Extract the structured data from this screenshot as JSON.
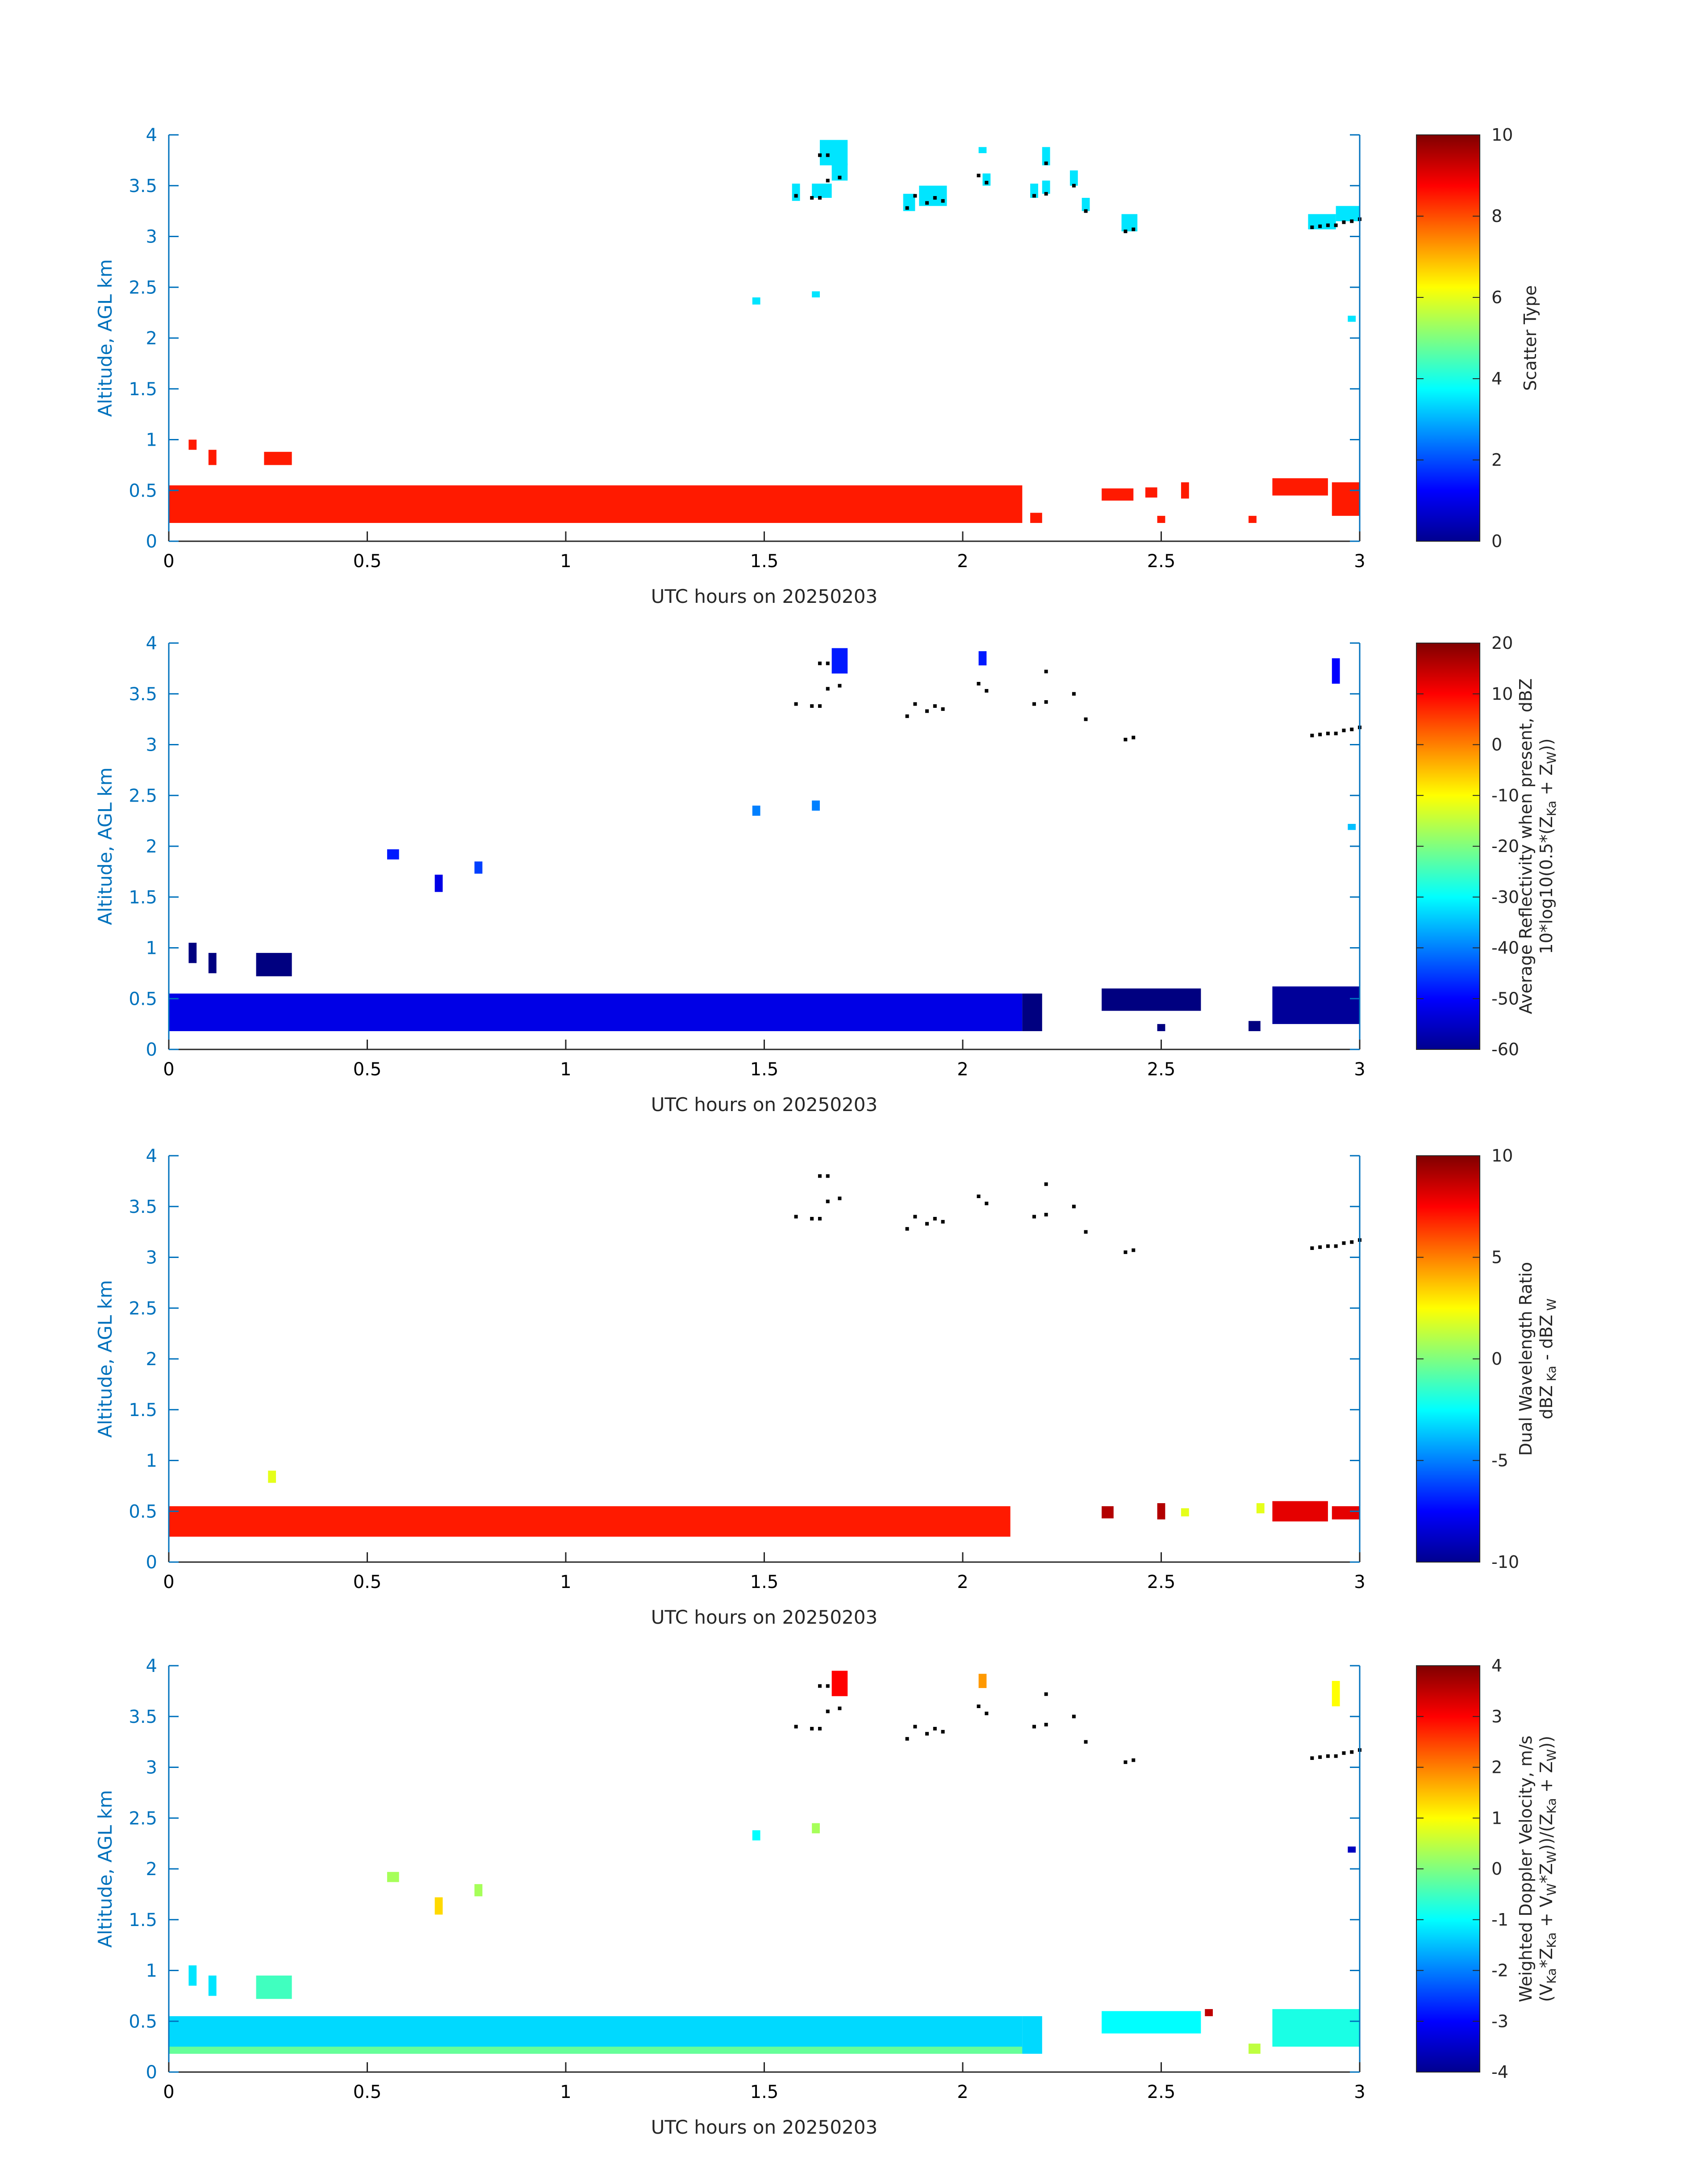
{
  "chart_data": [
    {
      "type": "heatmap",
      "xlabel": "UTC hours on 20250203",
      "ylabel": "Altitude, AGL km",
      "xlim": [
        0,
        3
      ],
      "ylim": [
        0,
        4
      ],
      "x_ticks": [
        "0",
        "0.5",
        "1",
        "1.5",
        "2",
        "2.5",
        "3"
      ],
      "y_ticks": [
        "0",
        "0.5",
        "1",
        "1.5",
        "2",
        "2.5",
        "3",
        "3.5",
        "4"
      ],
      "colorbar": {
        "label": "Scatter Type",
        "min": 0,
        "max": 10,
        "ticks": [
          "0",
          "2",
          "4",
          "6",
          "8",
          "10"
        ]
      },
      "blocks": [
        {
          "x0": 0.0,
          "x1": 2.15,
          "y0": 0.18,
          "y1": 0.55,
          "value": 8.5
        },
        {
          "x0": 0.05,
          "x1": 0.07,
          "y0": 0.9,
          "y1": 1.0,
          "value": 8.5
        },
        {
          "x0": 0.1,
          "x1": 0.12,
          "y0": 0.75,
          "y1": 0.9,
          "value": 8.5
        },
        {
          "x0": 0.24,
          "x1": 0.31,
          "y0": 0.75,
          "y1": 0.88,
          "value": 8.5
        },
        {
          "x0": 2.17,
          "x1": 2.2,
          "y0": 0.18,
          "y1": 0.28,
          "value": 8.5
        },
        {
          "x0": 2.35,
          "x1": 2.43,
          "y0": 0.4,
          "y1": 0.52,
          "value": 8.5
        },
        {
          "x0": 2.46,
          "x1": 2.49,
          "y0": 0.43,
          "y1": 0.53,
          "value": 8.5
        },
        {
          "x0": 2.55,
          "x1": 2.57,
          "y0": 0.42,
          "y1": 0.58,
          "value": 8.5
        },
        {
          "x0": 2.49,
          "x1": 2.51,
          "y0": 0.18,
          "y1": 0.25,
          "value": 8.5
        },
        {
          "x0": 2.72,
          "x1": 2.74,
          "y0": 0.18,
          "y1": 0.25,
          "value": 8.5
        },
        {
          "x0": 2.78,
          "x1": 2.92,
          "y0": 0.45,
          "y1": 0.62,
          "value": 8.5
        },
        {
          "x0": 2.93,
          "x1": 3.0,
          "y0": 0.25,
          "y1": 0.58,
          "value": 8.5
        },
        {
          "x0": 1.47,
          "x1": 1.49,
          "y0": 2.33,
          "y1": 2.4,
          "value": 3.5
        },
        {
          "x0": 1.62,
          "x1": 1.64,
          "y0": 2.4,
          "y1": 2.46,
          "value": 3.5
        },
        {
          "x0": 1.57,
          "x1": 1.59,
          "y0": 3.35,
          "y1": 3.52,
          "value": 3.5
        },
        {
          "x0": 1.62,
          "x1": 1.67,
          "y0": 3.38,
          "y1": 3.52,
          "value": 3.5
        },
        {
          "x0": 1.64,
          "x1": 1.71,
          "y0": 3.7,
          "y1": 3.95,
          "value": 3.5
        },
        {
          "x0": 1.67,
          "x1": 1.71,
          "y0": 3.55,
          "y1": 3.72,
          "value": 3.5
        },
        {
          "x0": 1.85,
          "x1": 1.88,
          "y0": 3.25,
          "y1": 3.42,
          "value": 3.5
        },
        {
          "x0": 1.89,
          "x1": 1.96,
          "y0": 3.3,
          "y1": 3.5,
          "value": 3.5
        },
        {
          "x0": 2.04,
          "x1": 2.06,
          "y0": 3.82,
          "y1": 3.88,
          "value": 3.5
        },
        {
          "x0": 2.05,
          "x1": 2.07,
          "y0": 3.5,
          "y1": 3.62,
          "value": 3.5
        },
        {
          "x0": 2.17,
          "x1": 2.19,
          "y0": 3.38,
          "y1": 3.52,
          "value": 3.5
        },
        {
          "x0": 2.2,
          "x1": 2.22,
          "y0": 3.7,
          "y1": 3.88,
          "value": 3.5
        },
        {
          "x0": 2.2,
          "x1": 2.22,
          "y0": 3.42,
          "y1": 3.55,
          "value": 3.5
        },
        {
          "x0": 2.27,
          "x1": 2.29,
          "y0": 3.5,
          "y1": 3.65,
          "value": 3.5
        },
        {
          "x0": 2.3,
          "x1": 2.32,
          "y0": 3.25,
          "y1": 3.38,
          "value": 3.5
        },
        {
          "x0": 2.4,
          "x1": 2.44,
          "y0": 3.05,
          "y1": 3.22,
          "value": 3.5
        },
        {
          "x0": 2.87,
          "x1": 2.94,
          "y0": 3.07,
          "y1": 3.22,
          "value": 3.5
        },
        {
          "x0": 2.94,
          "x1": 3.0,
          "y0": 3.15,
          "y1": 3.3,
          "value": 3.5
        },
        {
          "x0": 2.97,
          "x1": 2.99,
          "y0": 2.16,
          "y1": 2.22,
          "value": 3.5
        }
      ],
      "markers": true
    },
    {
      "type": "heatmap",
      "xlabel": "UTC hours on 20250203",
      "ylabel": "Altitude, AGL km",
      "xlim": [
        0,
        3
      ],
      "ylim": [
        0,
        4
      ],
      "x_ticks": [
        "0",
        "0.5",
        "1",
        "1.5",
        "2",
        "2.5",
        "3"
      ],
      "y_ticks": [
        "0",
        "0.5",
        "1",
        "1.5",
        "2",
        "2.5",
        "3",
        "3.5",
        "4"
      ],
      "colorbar": {
        "label": "Average Reflectivity when present, dBZ",
        "label2": "10*log10(0.5*(Z",
        "sub1": "Ka",
        "mid": " + Z",
        "sub2": "W",
        "tail": "))",
        "min": -60,
        "max": 20,
        "ticks": [
          "-60",
          "-50",
          "-40",
          "-30",
          "-20",
          "-10",
          "0",
          "10",
          "20"
        ]
      },
      "blocks": [
        {
          "x0": 0.0,
          "x1": 2.15,
          "y0": 0.18,
          "y1": 0.55,
          "value": -52
        },
        {
          "x0": 0.05,
          "x1": 0.07,
          "y0": 0.85,
          "y1": 1.05,
          "value": -60
        },
        {
          "x0": 0.1,
          "x1": 0.12,
          "y0": 0.75,
          "y1": 0.95,
          "value": -60
        },
        {
          "x0": 0.22,
          "x1": 0.31,
          "y0": 0.72,
          "y1": 0.95,
          "value": -60
        },
        {
          "x0": 0.55,
          "x1": 0.58,
          "y0": 1.87,
          "y1": 1.97,
          "value": -48
        },
        {
          "x0": 0.67,
          "x1": 0.69,
          "y0": 1.55,
          "y1": 1.72,
          "value": -52
        },
        {
          "x0": 0.77,
          "x1": 0.79,
          "y0": 1.73,
          "y1": 1.85,
          "value": -45
        },
        {
          "x0": 1.47,
          "x1": 1.49,
          "y0": 2.3,
          "y1": 2.4,
          "value": -40
        },
        {
          "x0": 1.62,
          "x1": 1.64,
          "y0": 2.35,
          "y1": 2.45,
          "value": -40
        },
        {
          "x0": 1.67,
          "x1": 1.71,
          "y0": 3.7,
          "y1": 3.95,
          "value": -48
        },
        {
          "x0": 2.04,
          "x1": 2.06,
          "y0": 3.78,
          "y1": 3.92,
          "value": -48
        },
        {
          "x0": 2.93,
          "x1": 2.95,
          "y0": 3.6,
          "y1": 3.85,
          "value": -50
        },
        {
          "x0": 2.97,
          "x1": 2.99,
          "y0": 2.16,
          "y1": 2.22,
          "value": -35
        },
        {
          "x0": 2.15,
          "x1": 2.2,
          "y0": 0.18,
          "y1": 0.55,
          "value": -60
        },
        {
          "x0": 2.35,
          "x1": 2.6,
          "y0": 0.38,
          "y1": 0.6,
          "value": -60
        },
        {
          "x0": 2.49,
          "x1": 2.51,
          "y0": 0.18,
          "y1": 0.25,
          "value": -60
        },
        {
          "x0": 2.72,
          "x1": 2.75,
          "y0": 0.18,
          "y1": 0.28,
          "value": -60
        },
        {
          "x0": 2.78,
          "x1": 3.0,
          "y0": 0.25,
          "y1": 0.62,
          "value": -58
        }
      ],
      "markers": true
    },
    {
      "type": "heatmap",
      "xlabel": "UTC hours on 20250203",
      "ylabel": "Altitude, AGL km",
      "xlim": [
        0,
        3
      ],
      "ylim": [
        0,
        4
      ],
      "x_ticks": [
        "0",
        "0.5",
        "1",
        "1.5",
        "2",
        "2.5",
        "3"
      ],
      "y_ticks": [
        "0",
        "0.5",
        "1",
        "1.5",
        "2",
        "2.5",
        "3",
        "3.5",
        "4"
      ],
      "colorbar": {
        "label": "Dual Wavelength Ratio",
        "label2": "dBZ",
        "sub1": " Ka",
        "mid": " - dBZ",
        "sub2": " W",
        "tail": "",
        "min": -10,
        "max": 10,
        "ticks": [
          "-10",
          "-5",
          "0",
          "5",
          "10"
        ]
      },
      "blocks": [
        {
          "x0": 0.0,
          "x1": 2.12,
          "y0": 0.25,
          "y1": 0.55,
          "value": 7
        },
        {
          "x0": 0.25,
          "x1": 0.27,
          "y0": 0.78,
          "y1": 0.9,
          "value": 2
        },
        {
          "x0": 2.35,
          "x1": 2.38,
          "y0": 0.43,
          "y1": 0.55,
          "value": 9
        },
        {
          "x0": 2.49,
          "x1": 2.51,
          "y0": 0.42,
          "y1": 0.58,
          "value": 9
        },
        {
          "x0": 2.55,
          "x1": 2.57,
          "y0": 0.45,
          "y1": 0.53,
          "value": 2
        },
        {
          "x0": 2.74,
          "x1": 2.76,
          "y0": 0.48,
          "y1": 0.58,
          "value": 2
        },
        {
          "x0": 2.78,
          "x1": 2.92,
          "y0": 0.4,
          "y1": 0.6,
          "value": 8
        },
        {
          "x0": 2.93,
          "x1": 3.0,
          "y0": 0.42,
          "y1": 0.55,
          "value": 8
        }
      ],
      "markers": true
    },
    {
      "type": "heatmap",
      "xlabel": "UTC hours on 20250203",
      "ylabel": "Altitude, AGL km",
      "xlim": [
        0,
        3
      ],
      "ylim": [
        0,
        4
      ],
      "x_ticks": [
        "0",
        "0.5",
        "1",
        "1.5",
        "2",
        "2.5",
        "3"
      ],
      "y_ticks": [
        "0",
        "0.5",
        "1",
        "1.5",
        "2",
        "2.5",
        "3",
        "3.5",
        "4"
      ],
      "colorbar": {
        "label": "Weighted Doppler Velocity, m/s",
        "label2": "(V",
        "sub1": "Ka",
        "mid": "*Z",
        "sub2": "Ka",
        "tail": " + V",
        "sub3": "W",
        "tail2": "*Z",
        "sub4": "W",
        "tail3": "))/(Z",
        "sub5": "Ka",
        "tail4": " + Z",
        "sub6": "W",
        "tail5": "))",
        "min": -4,
        "max": 4,
        "ticks": [
          "-4",
          "-3",
          "-2",
          "-1",
          "0",
          "1",
          "2",
          "3",
          "4"
        ]
      },
      "blocks": [
        {
          "x0": 0.0,
          "x1": 2.15,
          "y0": 0.18,
          "y1": 0.55,
          "value": -1.3
        },
        {
          "x0": 0.0,
          "x1": 2.15,
          "y0": 0.18,
          "y1": 0.25,
          "value": -0.2
        },
        {
          "x0": 0.05,
          "x1": 0.07,
          "y0": 0.85,
          "y1": 1.05,
          "value": -1.2
        },
        {
          "x0": 0.1,
          "x1": 0.12,
          "y0": 0.75,
          "y1": 0.95,
          "value": -1.2
        },
        {
          "x0": 0.22,
          "x1": 0.31,
          "y0": 0.72,
          "y1": 0.95,
          "value": -0.5
        },
        {
          "x0": 0.55,
          "x1": 0.58,
          "y0": 1.87,
          "y1": 1.97,
          "value": 0.3
        },
        {
          "x0": 0.67,
          "x1": 0.69,
          "y0": 1.55,
          "y1": 1.72,
          "value": 1.3
        },
        {
          "x0": 0.77,
          "x1": 0.79,
          "y0": 1.73,
          "y1": 1.85,
          "value": 0.3
        },
        {
          "x0": 1.47,
          "x1": 1.49,
          "y0": 2.28,
          "y1": 2.38,
          "value": -1.0
        },
        {
          "x0": 1.62,
          "x1": 1.64,
          "y0": 2.35,
          "y1": 2.45,
          "value": 0.3
        },
        {
          "x0": 1.67,
          "x1": 1.71,
          "y0": 3.7,
          "y1": 3.95,
          "value": 3.0
        },
        {
          "x0": 2.04,
          "x1": 2.06,
          "y0": 3.78,
          "y1": 3.92,
          "value": 1.8
        },
        {
          "x0": 2.93,
          "x1": 2.95,
          "y0": 3.6,
          "y1": 3.85,
          "value": 1.0
        },
        {
          "x0": 2.97,
          "x1": 2.99,
          "y0": 2.16,
          "y1": 2.22,
          "value": -3.5
        },
        {
          "x0": 2.15,
          "x1": 2.2,
          "y0": 0.18,
          "y1": 0.55,
          "value": -1.3
        },
        {
          "x0": 2.35,
          "x1": 2.6,
          "y0": 0.38,
          "y1": 0.6,
          "value": -1.0
        },
        {
          "x0": 2.61,
          "x1": 2.63,
          "y0": 0.55,
          "y1": 0.62,
          "value": 3.5
        },
        {
          "x0": 2.72,
          "x1": 2.75,
          "y0": 0.18,
          "y1": 0.28,
          "value": 0.5
        },
        {
          "x0": 2.78,
          "x1": 3.0,
          "y0": 0.25,
          "y1": 0.62,
          "value": -0.8
        }
      ],
      "markers": true
    }
  ],
  "markers": [
    [
      1.58,
      3.4
    ],
    [
      1.62,
      3.38
    ],
    [
      1.64,
      3.38
    ],
    [
      1.64,
      3.8
    ],
    [
      1.66,
      3.8
    ],
    [
      1.66,
      3.55
    ],
    [
      1.69,
      3.58
    ],
    [
      1.86,
      3.28
    ],
    [
      1.88,
      3.4
    ],
    [
      1.91,
      3.33
    ],
    [
      1.93,
      3.38
    ],
    [
      1.95,
      3.35
    ],
    [
      2.04,
      3.6
    ],
    [
      2.06,
      3.53
    ],
    [
      2.18,
      3.4
    ],
    [
      2.21,
      3.42
    ],
    [
      2.21,
      3.72
    ],
    [
      2.28,
      3.5
    ],
    [
      2.31,
      3.25
    ],
    [
      2.41,
      3.05
    ],
    [
      2.43,
      3.07
    ],
    [
      2.88,
      3.09
    ],
    [
      2.9,
      3.1
    ],
    [
      2.92,
      3.11
    ],
    [
      2.94,
      3.11
    ],
    [
      2.96,
      3.14
    ],
    [
      2.98,
      3.15
    ],
    [
      3.0,
      3.17
    ]
  ]
}
